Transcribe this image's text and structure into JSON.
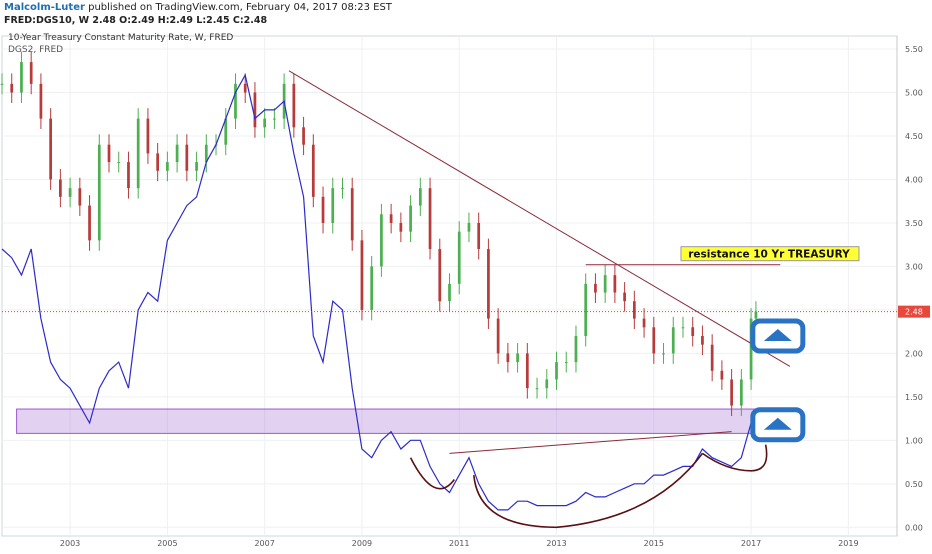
{
  "header": {
    "author": "Malcolm-Luter",
    "published": " published on TradingView.com, February 04, 2017 08:23 EST",
    "ohlc": "FRED:DGS10, W  2.48  O:2.49  H:2.49  L:2.45  C:2.48"
  },
  "chart_data": {
    "type": "line",
    "title": "10-Year Treasury Constant Maturity Rate, W, FRED",
    "subtitle": "DGS2, FRED",
    "ylabel": "",
    "xlabel": "",
    "ylim": [
      -0.1,
      5.65
    ],
    "xlim": [
      2001.6,
      2020.0
    ],
    "yticks": [
      "5.50",
      "5.00",
      "4.50",
      "4.00",
      "3.50",
      "3.00",
      "2.50",
      "2.00",
      "1.50",
      "1.00",
      "0.50",
      "0.00"
    ],
    "xticks": [
      "2003",
      "2005",
      "2007",
      "2009",
      "2011",
      "2013",
      "2015",
      "2017",
      "2019"
    ],
    "last_value_label": "2.48",
    "grid": true,
    "series": [
      {
        "name": "DGS10",
        "style": "candles",
        "up_color": "#4caf50",
        "down_color": "#b83b3b",
        "x": [
          2001.6,
          2001.8,
          2002.0,
          2002.2,
          2002.4,
          2002.6,
          2002.8,
          2003.0,
          2003.2,
          2003.4,
          2003.6,
          2003.8,
          2004.0,
          2004.2,
          2004.4,
          2004.6,
          2004.8,
          2005.0,
          2005.2,
          2005.4,
          2005.6,
          2005.8,
          2006.0,
          2006.2,
          2006.4,
          2006.6,
          2006.8,
          2007.0,
          2007.2,
          2007.4,
          2007.6,
          2007.8,
          2008.0,
          2008.2,
          2008.4,
          2008.6,
          2008.8,
          2009.0,
          2009.2,
          2009.4,
          2009.6,
          2009.8,
          2010.0,
          2010.2,
          2010.4,
          2010.6,
          2010.8,
          2011.0,
          2011.2,
          2011.4,
          2011.6,
          2011.8,
          2012.0,
          2012.2,
          2012.4,
          2012.6,
          2012.8,
          2013.0,
          2013.2,
          2013.4,
          2013.6,
          2013.8,
          2014.0,
          2014.2,
          2014.4,
          2014.6,
          2014.8,
          2015.0,
          2015.2,
          2015.4,
          2015.6,
          2015.8,
          2016.0,
          2016.2,
          2016.4,
          2016.6,
          2016.8,
          2017.0,
          2017.1
        ],
        "values": [
          5.1,
          5.0,
          5.35,
          5.1,
          4.7,
          4.0,
          3.8,
          3.9,
          3.7,
          3.3,
          4.4,
          4.2,
          4.2,
          3.9,
          4.7,
          4.3,
          4.1,
          4.2,
          4.4,
          4.1,
          4.2,
          4.4,
          4.4,
          4.7,
          5.1,
          5.0,
          4.6,
          4.7,
          4.7,
          5.1,
          4.6,
          4.4,
          3.8,
          3.5,
          3.9,
          3.9,
          3.3,
          2.5,
          3.0,
          3.6,
          3.5,
          3.4,
          3.7,
          3.9,
          3.2,
          2.6,
          2.8,
          3.4,
          3.5,
          3.2,
          2.4,
          2.0,
          1.9,
          2.0,
          1.6,
          1.6,
          1.7,
          1.9,
          1.9,
          2.2,
          2.8,
          2.7,
          2.9,
          2.7,
          2.6,
          2.4,
          2.3,
          2.0,
          2.0,
          2.3,
          2.3,
          2.2,
          2.1,
          1.8,
          1.7,
          1.4,
          1.7,
          2.4,
          2.48
        ]
      },
      {
        "name": "DGS2",
        "style": "line",
        "color": "#2b2bcc",
        "x": [
          2001.6,
          2001.8,
          2002.0,
          2002.2,
          2002.4,
          2002.6,
          2002.8,
          2003.0,
          2003.2,
          2003.4,
          2003.6,
          2003.8,
          2004.0,
          2004.2,
          2004.4,
          2004.6,
          2004.8,
          2005.0,
          2005.2,
          2005.4,
          2005.6,
          2005.8,
          2006.0,
          2006.2,
          2006.4,
          2006.6,
          2006.8,
          2007.0,
          2007.2,
          2007.4,
          2007.6,
          2007.8,
          2008.0,
          2008.2,
          2008.4,
          2008.6,
          2008.8,
          2009.0,
          2009.2,
          2009.4,
          2009.6,
          2009.8,
          2010.0,
          2010.2,
          2010.4,
          2010.6,
          2010.8,
          2011.0,
          2011.2,
          2011.4,
          2011.6,
          2011.8,
          2012.0,
          2012.2,
          2012.4,
          2012.6,
          2012.8,
          2013.0,
          2013.2,
          2013.4,
          2013.6,
          2013.8,
          2014.0,
          2014.2,
          2014.4,
          2014.6,
          2014.8,
          2015.0,
          2015.2,
          2015.4,
          2015.6,
          2015.8,
          2016.0,
          2016.2,
          2016.4,
          2016.6,
          2016.8,
          2017.0,
          2017.1
        ],
        "values": [
          3.2,
          3.1,
          2.9,
          3.2,
          2.4,
          1.9,
          1.7,
          1.6,
          1.4,
          1.2,
          1.6,
          1.8,
          1.9,
          1.6,
          2.5,
          2.7,
          2.6,
          3.3,
          3.5,
          3.7,
          3.8,
          4.2,
          4.4,
          4.7,
          5.0,
          5.2,
          4.7,
          4.8,
          4.8,
          4.9,
          4.3,
          3.8,
          2.2,
          1.9,
          2.6,
          2.5,
          1.6,
          0.9,
          0.8,
          1.0,
          1.1,
          0.9,
          1.0,
          1.0,
          0.7,
          0.5,
          0.4,
          0.6,
          0.8,
          0.5,
          0.3,
          0.2,
          0.2,
          0.3,
          0.3,
          0.25,
          0.25,
          0.25,
          0.25,
          0.3,
          0.4,
          0.35,
          0.35,
          0.4,
          0.45,
          0.5,
          0.5,
          0.6,
          0.6,
          0.65,
          0.7,
          0.7,
          0.9,
          0.8,
          0.75,
          0.7,
          0.8,
          1.2,
          1.22
        ]
      }
    ],
    "annotations": {
      "resistance_label": "resistance 10 Yr TREASURY",
      "resistance_level": 3.02,
      "trendline_10yr": {
        "x": [
          2007.5,
          2017.8
        ],
        "y": [
          5.25,
          1.85
        ]
      },
      "trendline_2yr": {
        "x": [
          2010.8,
          2016.6
        ],
        "y": [
          0.85,
          1.1
        ]
      },
      "support_band": {
        "x": [
          2001.9,
          2018.0
        ],
        "y": [
          1.08,
          1.36
        ],
        "color": "#9b59d0"
      },
      "arrows": [
        {
          "y": 2.2,
          "direction": "up",
          "color": "#2a73c4"
        },
        {
          "y": 1.18,
          "direction": "up",
          "color": "#2a73c4"
        }
      ]
    }
  }
}
